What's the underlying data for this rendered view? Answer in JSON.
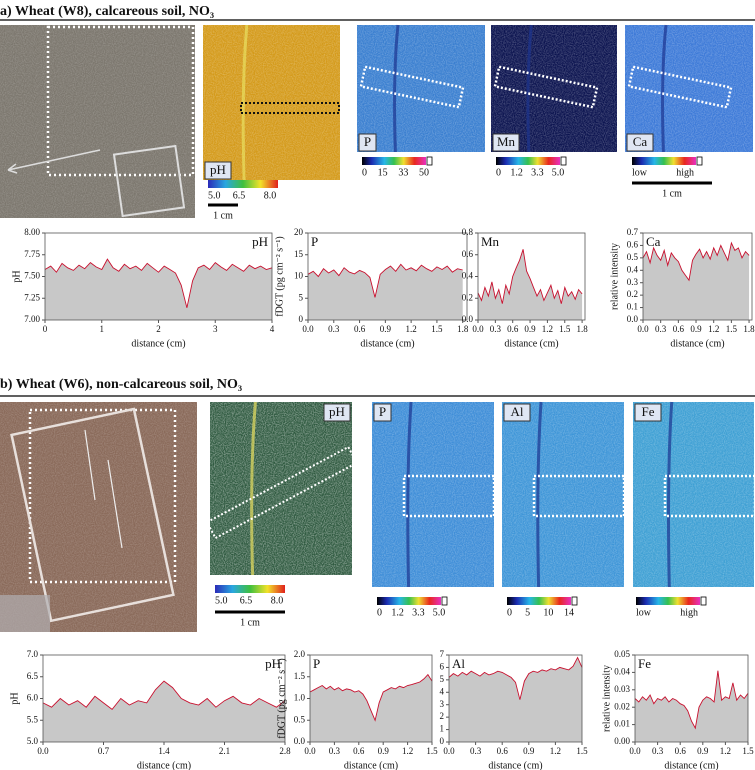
{
  "panels": [
    {
      "heading": "a) Wheat (W8), calcareous soil, NO₃",
      "image_labels": [
        "pH",
        "P",
        "Mn",
        "Ca"
      ],
      "colorbars": [
        {
          "ticks": [
            "5.0",
            "6.5",
            "8.0"
          ]
        },
        {
          "ticks": [
            "0",
            "15",
            "33",
            "50"
          ]
        },
        {
          "ticks": [
            "0",
            "1.2",
            "3.3",
            "5.0"
          ]
        },
        {
          "ticks": [
            "low",
            "high"
          ]
        }
      ],
      "scale_bars": [
        "1 cm",
        "1 cm"
      ]
    },
    {
      "heading": "b) Wheat (W6), non-calcareous soil, NO₃",
      "image_labels": [
        "pH",
        "P",
        "Al",
        "Fe"
      ],
      "colorbars": [
        {
          "ticks": [
            "5.0",
            "6.5",
            "8.0"
          ]
        },
        {
          "ticks": [
            "0",
            "1.2",
            "3.3",
            "5.0"
          ]
        },
        {
          "ticks": [
            "0",
            "5",
            "10",
            "14"
          ]
        },
        {
          "ticks": [
            "low",
            "high"
          ]
        }
      ],
      "scale_bars": [
        "1 cm"
      ]
    }
  ],
  "chart_data": [
    {
      "type": "line",
      "annotation": "pH",
      "ylabel": "pH",
      "xlabel": "distance (cm)",
      "color": "#c8102e",
      "fill": "#c8c8c8",
      "xlim": [
        0,
        4
      ],
      "xticks": [
        0,
        1,
        2,
        3,
        4
      ],
      "ylim": [
        7,
        8
      ],
      "yticks": [
        {
          "value": 7,
          "label": "7.00"
        },
        7.25,
        {
          "value": 7.5,
          "label": "7.50"
        },
        7.75,
        {
          "value": 8,
          "label": "8.00"
        }
      ],
      "x": [
        0,
        0.1,
        0.2,
        0.3,
        0.4,
        0.5,
        0.6,
        0.7,
        0.8,
        0.9,
        1,
        1.1,
        1.2,
        1.3,
        1.4,
        1.5,
        1.6,
        1.7,
        1.8,
        1.9,
        2,
        2.1,
        2.2,
        2.3,
        2.4,
        2.5,
        2.6,
        2.7,
        2.8,
        2.9,
        3,
        3.1,
        3.2,
        3.3,
        3.4,
        3.5,
        3.6,
        3.7,
        3.8,
        3.9,
        4
      ],
      "values": [
        7.58,
        7.62,
        7.55,
        7.65,
        7.6,
        7.57,
        7.63,
        7.59,
        7.66,
        7.61,
        7.58,
        7.7,
        7.6,
        7.56,
        7.64,
        7.59,
        7.62,
        7.57,
        7.65,
        7.6,
        7.55,
        7.62,
        7.58,
        7.54,
        7.4,
        7.14,
        7.45,
        7.6,
        7.63,
        7.58,
        7.66,
        7.61,
        7.57,
        7.64,
        7.6,
        7.56,
        7.63,
        7.59,
        7.62,
        7.58,
        7.6
      ]
    },
    {
      "type": "line",
      "annotation": "P",
      "ylabel": "fDGT (pg cm⁻² s⁻¹)",
      "xlabel": "distance (cm)",
      "color": "#c8102e",
      "fill": "#c8c8c8",
      "xlim": [
        0,
        1.85
      ],
      "xticks": [
        {
          "value": 0,
          "label": "0.0"
        },
        0.3,
        0.6,
        0.9,
        1.2,
        1.5,
        1.8
      ],
      "ylim": [
        0,
        20
      ],
      "yticks": [
        0,
        5,
        10,
        15,
        20
      ],
      "x": [
        0,
        0.06,
        0.12,
        0.18,
        0.24,
        0.3,
        0.36,
        0.42,
        0.48,
        0.54,
        0.6,
        0.66,
        0.72,
        0.78,
        0.84,
        0.9,
        0.96,
        1.02,
        1.08,
        1.14,
        1.2,
        1.26,
        1.32,
        1.38,
        1.44,
        1.5,
        1.56,
        1.62,
        1.68,
        1.74,
        1.8
      ],
      "values": [
        10.5,
        11.2,
        10,
        11.8,
        10.8,
        11.5,
        10.2,
        12,
        11,
        10.6,
        11.4,
        10.9,
        9.8,
        5.2,
        10.5,
        11.6,
        12.4,
        11.2,
        12.8,
        11.5,
        12,
        11.3,
        12.6,
        11.8,
        11.2,
        12.2,
        11.6,
        12.4,
        11,
        11.8,
        11.5
      ]
    },
    {
      "type": "line",
      "annotation": "Mn",
      "xlabel": "distance (cm)",
      "color": "#c8102e",
      "fill": "#c8c8c8",
      "xlim": [
        0,
        1.85
      ],
      "xticks": [
        {
          "value": 0,
          "label": "0.0"
        },
        0.3,
        0.6,
        0.9,
        1.2,
        1.5,
        1.8
      ],
      "ylim": [
        0,
        0.8
      ],
      "yticks": [
        {
          "value": 0,
          "label": "0.0"
        },
        0.2,
        0.4,
        0.6,
        0.8
      ],
      "x": [
        0,
        0.06,
        0.12,
        0.18,
        0.24,
        0.3,
        0.36,
        0.42,
        0.48,
        0.54,
        0.6,
        0.66,
        0.72,
        0.78,
        0.84,
        0.9,
        0.96,
        1.02,
        1.08,
        1.14,
        1.2,
        1.26,
        1.32,
        1.38,
        1.44,
        1.5,
        1.56,
        1.62,
        1.68,
        1.74,
        1.8
      ],
      "values": [
        0.25,
        0.18,
        0.3,
        0.22,
        0.35,
        0.2,
        0.28,
        0.15,
        0.32,
        0.24,
        0.4,
        0.48,
        0.55,
        0.65,
        0.45,
        0.38,
        0.3,
        0.22,
        0.28,
        0.18,
        0.25,
        0.32,
        0.2,
        0.27,
        0.15,
        0.3,
        0.22,
        0.26,
        0.19,
        0.28,
        0.24
      ]
    },
    {
      "type": "line",
      "annotation": "Ca",
      "ylabel": "relative intensity",
      "xlabel": "distance (cm)",
      "color": "#c8102e",
      "fill": "#c8c8c8",
      "xlim": [
        0,
        1.85
      ],
      "xticks": [
        {
          "value": 0,
          "label": "0.0"
        },
        0.3,
        0.6,
        0.9,
        1.2,
        1.5,
        1.8
      ],
      "ylim": [
        0,
        0.7
      ],
      "yticks": [
        {
          "value": 0,
          "label": "0.0"
        },
        0.1,
        0.2,
        0.3,
        0.4,
        0.5,
        0.6,
        0.7
      ],
      "x": [
        0,
        0.06,
        0.12,
        0.18,
        0.24,
        0.3,
        0.36,
        0.42,
        0.48,
        0.54,
        0.6,
        0.66,
        0.72,
        0.78,
        0.84,
        0.9,
        0.96,
        1.02,
        1.08,
        1.14,
        1.2,
        1.26,
        1.32,
        1.38,
        1.44,
        1.5,
        1.56,
        1.62,
        1.68,
        1.74,
        1.8
      ],
      "values": [
        0.5,
        0.55,
        0.46,
        0.58,
        0.52,
        0.48,
        0.56,
        0.44,
        0.54,
        0.5,
        0.47,
        0.4,
        0.36,
        0.32,
        0.48,
        0.53,
        0.57,
        0.5,
        0.55,
        0.49,
        0.58,
        0.52,
        0.6,
        0.54,
        0.48,
        0.62,
        0.56,
        0.58,
        0.5,
        0.55,
        0.52
      ]
    },
    {
      "type": "line",
      "annotation": "pH",
      "ylabel": "pH",
      "xlabel": "distance (cm)",
      "color": "#c8102e",
      "fill": "#c8c8c8",
      "xlim": [
        0,
        2.8
      ],
      "xticks": [
        {
          "value": 0,
          "label": "0.0"
        },
        0.7,
        1.4,
        2.1,
        2.8
      ],
      "ylim": [
        5,
        7
      ],
      "yticks": [
        {
          "value": 5,
          "label": "5.0"
        },
        5.5,
        {
          "value": 6,
          "label": "6.0"
        },
        6.5,
        {
          "value": 7,
          "label": "7.0"
        }
      ],
      "x": [
        0,
        0.1,
        0.2,
        0.3,
        0.4,
        0.5,
        0.6,
        0.7,
        0.8,
        0.9,
        1,
        1.1,
        1.2,
        1.3,
        1.4,
        1.5,
        1.6,
        1.7,
        1.8,
        1.9,
        2,
        2.1,
        2.2,
        2.3,
        2.4,
        2.5,
        2.6,
        2.7,
        2.8
      ],
      "values": [
        5.9,
        5.8,
        6,
        5.85,
        5.95,
        5.8,
        6.05,
        5.9,
        5.75,
        6,
        5.85,
        5.95,
        5.9,
        6.2,
        6.4,
        6.25,
        6,
        5.9,
        5.85,
        6,
        5.8,
        5.95,
        6.05,
        5.9,
        5.85,
        6,
        5.9,
        5.8,
        5.95
      ]
    },
    {
      "type": "line",
      "annotation": "P",
      "ylabel": "fDGT (pg cm⁻² s⁻¹)",
      "xlabel": "distance (cm)",
      "color": "#c8102e",
      "fill": "#c8c8c8",
      "xlim": [
        0,
        1.5
      ],
      "xticks": [
        {
          "value": 0,
          "label": "0.0"
        },
        0.3,
        0.6,
        0.9,
        1.2,
        1.5
      ],
      "ylim": [
        0,
        2
      ],
      "yticks": [
        {
          "value": 0,
          "label": "0.0"
        },
        0.5,
        {
          "value": 1,
          "label": "1.0"
        },
        1.5,
        {
          "value": 2,
          "label": "2.0"
        }
      ],
      "x": [
        0,
        0.05,
        0.1,
        0.15,
        0.2,
        0.25,
        0.3,
        0.35,
        0.4,
        0.45,
        0.5,
        0.55,
        0.6,
        0.65,
        0.7,
        0.75,
        0.8,
        0.85,
        0.9,
        0.95,
        1,
        1.05,
        1.1,
        1.15,
        1.2,
        1.25,
        1.3,
        1.35,
        1.4,
        1.45,
        1.5
      ],
      "values": [
        1.15,
        1.2,
        1.25,
        1.3,
        1.22,
        1.28,
        1.2,
        1.25,
        1.18,
        1.22,
        1.2,
        1.15,
        1.18,
        1.1,
        0.95,
        0.72,
        0.5,
        0.9,
        1.15,
        1.2,
        1.25,
        1.22,
        1.28,
        1.25,
        1.3,
        1.32,
        1.35,
        1.38,
        1.45,
        1.55,
        1.4
      ]
    },
    {
      "type": "line",
      "annotation": "Al",
      "xlabel": "distance (cm)",
      "color": "#c8102e",
      "fill": "#c8c8c8",
      "xlim": [
        0,
        1.5
      ],
      "xticks": [
        {
          "value": 0,
          "label": "0.0"
        },
        0.3,
        0.6,
        0.9,
        1.2,
        1.5
      ],
      "ylim": [
        0,
        7
      ],
      "yticks": [
        0,
        1,
        2,
        3,
        4,
        5,
        6,
        7
      ],
      "x": [
        0,
        0.05,
        0.1,
        0.15,
        0.2,
        0.25,
        0.3,
        0.35,
        0.4,
        0.45,
        0.5,
        0.55,
        0.6,
        0.65,
        0.7,
        0.75,
        0.8,
        0.85,
        0.9,
        0.95,
        1,
        1.05,
        1.1,
        1.15,
        1.2,
        1.25,
        1.3,
        1.35,
        1.4,
        1.45,
        1.5
      ],
      "values": [
        5.2,
        5.5,
        5.3,
        5.6,
        5.4,
        5.7,
        5.5,
        5.3,
        5.6,
        5.4,
        5.5,
        5.7,
        5.6,
        5.4,
        5.2,
        4.8,
        3.4,
        4.9,
        5.5,
        5.7,
        5.6,
        5.8,
        5.7,
        5.9,
        5.8,
        6,
        5.9,
        5.8,
        6.1,
        6.8,
        6
      ]
    },
    {
      "type": "line",
      "annotation": "Fe",
      "ylabel": "relative intensity",
      "xlabel": "distance (cm)",
      "color": "#c8102e",
      "fill": "#c8c8c8",
      "xlim": [
        0,
        1.5
      ],
      "xticks": [
        {
          "value": 0,
          "label": "0.0"
        },
        0.3,
        0.6,
        0.9,
        1.2,
        1.5
      ],
      "ylim": [
        0,
        0.05
      ],
      "yticks": [
        {
          "value": 0,
          "label": "0.00"
        },
        0.01,
        0.02,
        0.03,
        0.04,
        0.05
      ],
      "x": [
        0,
        0.05,
        0.1,
        0.15,
        0.2,
        0.25,
        0.3,
        0.35,
        0.4,
        0.45,
        0.5,
        0.55,
        0.6,
        0.65,
        0.7,
        0.75,
        0.8,
        0.85,
        0.9,
        0.95,
        1,
        1.05,
        1.1,
        1.15,
        1.2,
        1.25,
        1.3,
        1.35,
        1.4,
        1.45,
        1.5
      ],
      "values": [
        0.025,
        0.023,
        0.026,
        0.024,
        0.027,
        0.022,
        0.025,
        0.024,
        0.026,
        0.023,
        0.025,
        0.024,
        0.022,
        0.021,
        0.018,
        0.012,
        0.008,
        0.02,
        0.024,
        0.026,
        0.025,
        0.023,
        0.041,
        0.024,
        0.026,
        0.025,
        0.034,
        0.024,
        0.027,
        0.025,
        0.028
      ]
    }
  ]
}
